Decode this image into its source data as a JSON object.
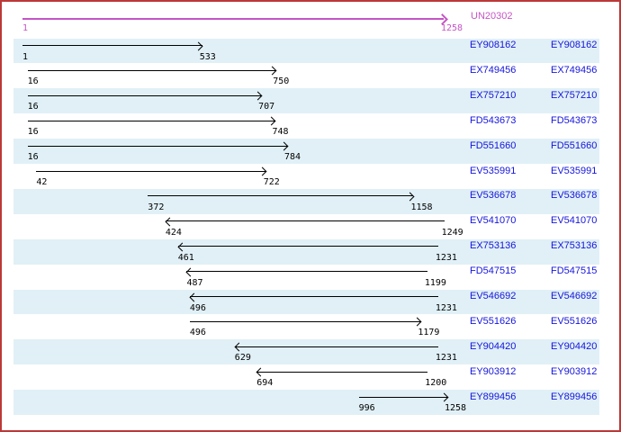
{
  "chart_data": {
    "type": "bar",
    "subtype": "horizontal-range-alignment",
    "axis": {
      "min": 1,
      "max": 1258
    },
    "legend": "none",
    "grid": false,
    "reference": {
      "label": "UN20302",
      "start": 1,
      "end": 1258,
      "strand": "+",
      "direction": "right"
    },
    "accession_label_columns": 2,
    "series": [
      {
        "label": "EY908162",
        "start": 1,
        "end": 533,
        "strand": "+",
        "direction": "right"
      },
      {
        "label": "EX749456",
        "start": 16,
        "end": 750,
        "strand": "+",
        "direction": "right"
      },
      {
        "label": "EX757210",
        "start": 16,
        "end": 707,
        "strand": "+",
        "direction": "right"
      },
      {
        "label": "FD543673",
        "start": 16,
        "end": 748,
        "strand": "+",
        "direction": "right"
      },
      {
        "label": "FD551660",
        "start": 16,
        "end": 784,
        "strand": "+",
        "direction": "right"
      },
      {
        "label": "EV535991",
        "start": 42,
        "end": 722,
        "strand": "+",
        "direction": "right"
      },
      {
        "label": "EV536678",
        "start": 372,
        "end": 1158,
        "strand": "+",
        "direction": "right"
      },
      {
        "label": "EV541070",
        "start": 424,
        "end": 1249,
        "strand": "-",
        "direction": "left"
      },
      {
        "label": "EX753136",
        "start": 461,
        "end": 1231,
        "strand": "-",
        "direction": "left"
      },
      {
        "label": "FD547515",
        "start": 487,
        "end": 1199,
        "strand": "-",
        "direction": "left"
      },
      {
        "label": "EV546692",
        "start": 496,
        "end": 1231,
        "strand": "-",
        "direction": "left"
      },
      {
        "label": "EV551626",
        "start": 496,
        "end": 1179,
        "strand": "+",
        "direction": "right"
      },
      {
        "label": "EY904420",
        "start": 629,
        "end": 1231,
        "strand": "-",
        "direction": "left"
      },
      {
        "label": "EY903912",
        "start": 694,
        "end": 1200,
        "strand": "-",
        "direction": "left"
      },
      {
        "label": "EY899456",
        "start": 996,
        "end": 1258,
        "strand": "+",
        "direction": "right"
      }
    ]
  },
  "style": {
    "reference_color": "#c455c4",
    "accession_color": "#1515dd",
    "band_color": "#e0f0f6",
    "arrow_color": "#000000",
    "frame_border_color": "#bb3838",
    "background_color": "#ffffff"
  }
}
